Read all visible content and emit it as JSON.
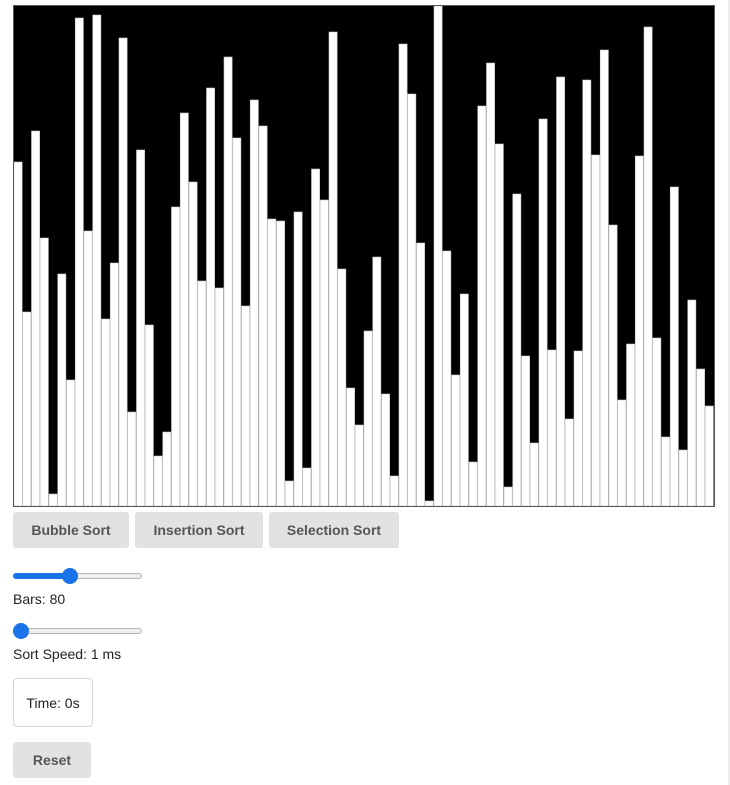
{
  "chart_data": {
    "type": "bar",
    "bar_count": 80,
    "ylim": [
      0,
      500
    ],
    "values": [
      344,
      194,
      375,
      268,
      12,
      232,
      126,
      488,
      275,
      491,
      187,
      243,
      468,
      94,
      356,
      181,
      50,
      74,
      299,
      393,
      324,
      225,
      418,
      218,
      449,
      368,
      200,
      406,
      380,
      287,
      285,
      25,
      294,
      38,
      337,
      306,
      474,
      237,
      118,
      81,
      175,
      249,
      112,
      30,
      462,
      412,
      263,
      5,
      500,
      255,
      131,
      212,
      44,
      400,
      443,
      362,
      19,
      312,
      150,
      63,
      387,
      156,
      429,
      87,
      155,
      426,
      351,
      456,
      281,
      106,
      162,
      350,
      479,
      168,
      69,
      319,
      56,
      206,
      137,
      100
    ],
    "bar_fill": "#ffffff",
    "bar_stroke": "#c8c8c8",
    "background": "#000000",
    "grid": false
  },
  "controls": {
    "sort_buttons": [
      {
        "label": "Bubble Sort"
      },
      {
        "label": "Insertion Sort"
      },
      {
        "label": "Selection Sort"
      }
    ],
    "bars_slider": {
      "value": 80,
      "min": 10,
      "max": 170,
      "label": "Bars: 80"
    },
    "speed_slider": {
      "value": 1,
      "min": 1,
      "max": 500,
      "label": "Sort Speed: 1 ms"
    },
    "time_label": "Time: 0s",
    "reset_label": "Reset",
    "accent_color": "#1a73e8"
  }
}
